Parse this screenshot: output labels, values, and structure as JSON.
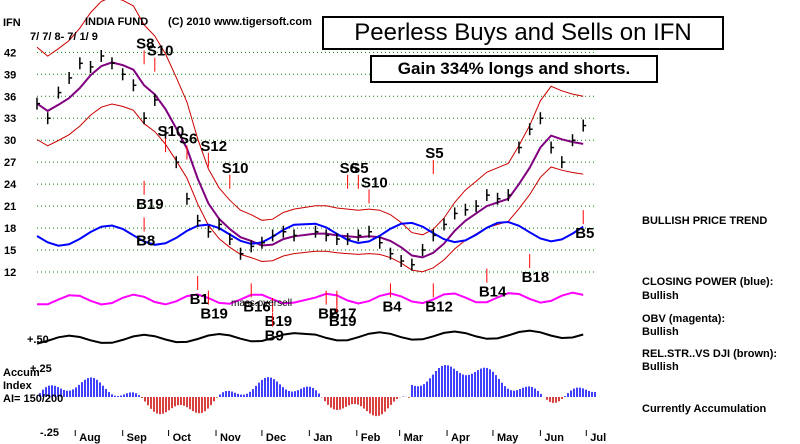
{
  "header": {
    "ticker": "IFN",
    "fund": "INDIA FUND",
    "copyright": "(C) 2010 www.tigersoft.com",
    "date_range": "7/ 7/ 8- 7/ 1/ 9"
  },
  "title_box": "Peerless Buys and Sells on IFN",
  "gain_box": "Gain 334% longs and shorts.",
  "status": {
    "trend": "BULLISH PRICE TREND",
    "closing_power_label": "CLOSING POWER (blue):",
    "closing_power_value": "Bullish",
    "obv_label": "OBV (magenta):",
    "obv_value": "Bullish",
    "relstr_label": "REL.STR..VS DJI (brown):",
    "relstr_value": "Bullish",
    "accum_status": "Currently Accumulation"
  },
  "accum": {
    "label1": "Accum",
    "label2": "Index",
    "label3": "AI= 150/200",
    "tick_pos": "+.25",
    "tick_neg": "-.25",
    "tick_rs": "+.50"
  },
  "colors": {
    "price": "#000000",
    "closing_power": "#0000ff",
    "obv": "#ff00ff",
    "relstr": "#000000",
    "bands": "#cc0000",
    "ma": "#800080",
    "grid": "#008000",
    "accum_pos": "#0000ff",
    "accum_neg": "#cc0000",
    "signal_arrow": "#ff0000"
  },
  "chart_data": {
    "type": "line",
    "title": "INDIA FUND",
    "x_tick_labels": [
      "Aug",
      "Sep",
      "Oct",
      "Nov",
      "Dec",
      "Jan",
      "Feb",
      "Mar",
      "Apr",
      "May",
      "Jun",
      "Jul"
    ],
    "y_tick_labels": [
      "42",
      "39",
      "36",
      "33",
      "30",
      "27",
      "24",
      "21",
      "18",
      "15",
      "12"
    ],
    "ylim": [
      10.5,
      43
    ],
    "grid": true,
    "series": [
      {
        "name": "IFN",
        "points": [
          [
            "2008-07-07",
            35
          ],
          [
            "2008-07-14",
            33
          ],
          [
            "2008-07-21",
            36.5
          ],
          [
            "2008-07-28",
            38.5
          ],
          [
            "2008-08-04",
            40.5
          ],
          [
            "2008-08-11",
            40
          ],
          [
            "2008-08-18",
            41.5
          ],
          [
            "2008-08-25",
            40.5
          ],
          [
            "2008-09-01",
            39
          ],
          [
            "2008-09-08",
            37.5
          ],
          [
            "2008-09-15",
            33
          ],
          [
            "2008-09-22",
            35.5
          ],
          [
            "2008-09-29",
            31
          ],
          [
            "2008-10-06",
            27
          ],
          [
            "2008-10-13",
            22
          ],
          [
            "2008-10-20",
            19
          ],
          [
            "2008-10-27",
            17.5
          ],
          [
            "2008-11-03",
            18.5
          ],
          [
            "2008-11-10",
            16.5
          ],
          [
            "2008-11-17",
            14.5
          ],
          [
            "2008-11-24",
            15.5
          ],
          [
            "2008-12-01",
            16
          ],
          [
            "2008-12-08",
            17
          ],
          [
            "2008-12-15",
            17.5
          ],
          [
            "2008-12-22",
            17
          ],
          [
            "2009-01-05",
            17.5
          ],
          [
            "2009-01-12",
            17
          ],
          [
            "2009-01-19",
            16.5
          ],
          [
            "2009-01-26",
            16.5
          ],
          [
            "2009-02-02",
            17
          ],
          [
            "2009-02-09",
            17.5
          ],
          [
            "2009-02-16",
            16
          ],
          [
            "2009-02-23",
            14.5
          ],
          [
            "2009-03-02",
            13.5
          ],
          [
            "2009-03-09",
            13
          ],
          [
            "2009-03-16",
            15
          ],
          [
            "2009-03-23",
            17
          ],
          [
            "2009-03-30",
            18.5
          ],
          [
            "2009-04-06",
            20
          ],
          [
            "2009-04-13",
            20.5
          ],
          [
            "2009-04-20",
            21
          ],
          [
            "2009-04-27",
            22.5
          ],
          [
            "2009-05-04",
            22
          ],
          [
            "2009-05-11",
            22.5
          ],
          [
            "2009-05-18",
            29
          ],
          [
            "2009-05-25",
            31.5
          ],
          [
            "2009-06-01",
            33
          ],
          [
            "2009-06-08",
            29
          ],
          [
            "2009-06-15",
            27
          ],
          [
            "2009-06-22",
            30
          ],
          [
            "2009-06-29",
            32
          ]
        ]
      }
    ],
    "signals": [
      {
        "label": "S8",
        "date": "2008-09-15",
        "price": 39
      },
      {
        "label": "S10",
        "date": "2008-09-22",
        "price": 38
      },
      {
        "label": "S10",
        "date": "2008-09-29",
        "price": 27
      },
      {
        "label": "S6",
        "date": "2008-10-13",
        "price": 26
      },
      {
        "label": "S12",
        "date": "2008-10-27",
        "price": 25
      },
      {
        "label": "S10",
        "date": "2008-11-10",
        "price": 22
      },
      {
        "label": "S6",
        "date": "2009-01-26",
        "price": 22
      },
      {
        "label": "S5",
        "date": "2009-02-02",
        "price": 22
      },
      {
        "label": "S10",
        "date": "2009-02-09",
        "price": 20
      },
      {
        "label": "S5",
        "date": "2009-03-23",
        "price": 24
      },
      {
        "label": "B19",
        "date": "2008-09-15",
        "price": 25
      },
      {
        "label": "B8",
        "date": "2008-09-15",
        "price": 20
      },
      {
        "label": "B1",
        "date": "2008-10-20",
        "price": 12
      },
      {
        "label": "B19",
        "date": "2008-10-27",
        "price": 10
      },
      {
        "label": "B16",
        "date": "2008-11-24",
        "price": 11
      },
      {
        "label": "B19",
        "date": "2008-12-08",
        "price": 9
      },
      {
        "label": "B9",
        "date": "2008-12-08",
        "price": 7
      },
      {
        "label": "B2",
        "date": "2009-01-12",
        "price": 10
      },
      {
        "label": "B17",
        "date": "2009-01-19",
        "price": 10
      },
      {
        "label": "B19",
        "date": "2009-01-19",
        "price": 9
      },
      {
        "label": "B4",
        "date": "2009-02-23",
        "price": 11
      },
      {
        "label": "B12",
        "date": "2009-03-23",
        "price": 11
      },
      {
        "label": "B14",
        "date": "2009-04-27",
        "price": 13
      },
      {
        "label": "B18",
        "date": "2009-05-25",
        "price": 15
      },
      {
        "label": "B5",
        "date": "2009-06-29",
        "price": 21
      }
    ],
    "annotations": [
      "mass.oversell"
    ]
  }
}
